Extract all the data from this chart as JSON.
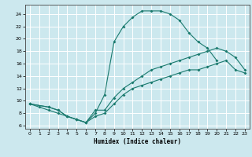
{
  "xlabel": "Humidex (Indice chaleur)",
  "bg_color": "#cce8ee",
  "grid_color": "#ffffff",
  "line_color": "#1a7a6e",
  "xlim": [
    -0.5,
    23.5
  ],
  "ylim": [
    5.5,
    25.5
  ],
  "xticks": [
    0,
    1,
    2,
    3,
    4,
    5,
    6,
    7,
    8,
    9,
    10,
    11,
    12,
    13,
    14,
    15,
    16,
    17,
    18,
    19,
    20,
    21,
    22,
    23
  ],
  "yticks": [
    6,
    8,
    10,
    12,
    14,
    16,
    18,
    20,
    22,
    24
  ],
  "line1_x": [
    0,
    1,
    2,
    3,
    4,
    5,
    6,
    7,
    8,
    9,
    10,
    11,
    12,
    13,
    14,
    15,
    16,
    17,
    18,
    19,
    20
  ],
  "line1_y": [
    9.5,
    9.0,
    8.5,
    8.0,
    7.5,
    7.0,
    6.5,
    8.0,
    11.0,
    19.5,
    22.0,
    23.5,
    24.5,
    24.5,
    24.5,
    24.0,
    23.0,
    21.0,
    19.5,
    18.5,
    16.5
  ],
  "line2_x": [
    0,
    2,
    3,
    4,
    5,
    6,
    7,
    8,
    9,
    10,
    11,
    12,
    13,
    14,
    15,
    16,
    17,
    18,
    19,
    20,
    21,
    22,
    23
  ],
  "line2_y": [
    9.5,
    9.0,
    8.5,
    7.5,
    7.0,
    6.5,
    8.5,
    8.5,
    10.5,
    12.0,
    13.0,
    14.0,
    15.0,
    15.5,
    16.0,
    16.5,
    17.0,
    17.5,
    18.0,
    18.5,
    18.0,
    17.0,
    15.0
  ],
  "line3_x": [
    0,
    2,
    3,
    4,
    5,
    6,
    7,
    8,
    9,
    10,
    11,
    12,
    13,
    14,
    15,
    16,
    17,
    18,
    19,
    20,
    21,
    22,
    23
  ],
  "line3_y": [
    9.5,
    9.0,
    8.5,
    7.5,
    7.0,
    6.5,
    7.5,
    8.0,
    9.5,
    11.0,
    12.0,
    12.5,
    13.0,
    13.5,
    14.0,
    14.5,
    15.0,
    15.0,
    15.5,
    16.0,
    16.5,
    15.0,
    14.5
  ]
}
